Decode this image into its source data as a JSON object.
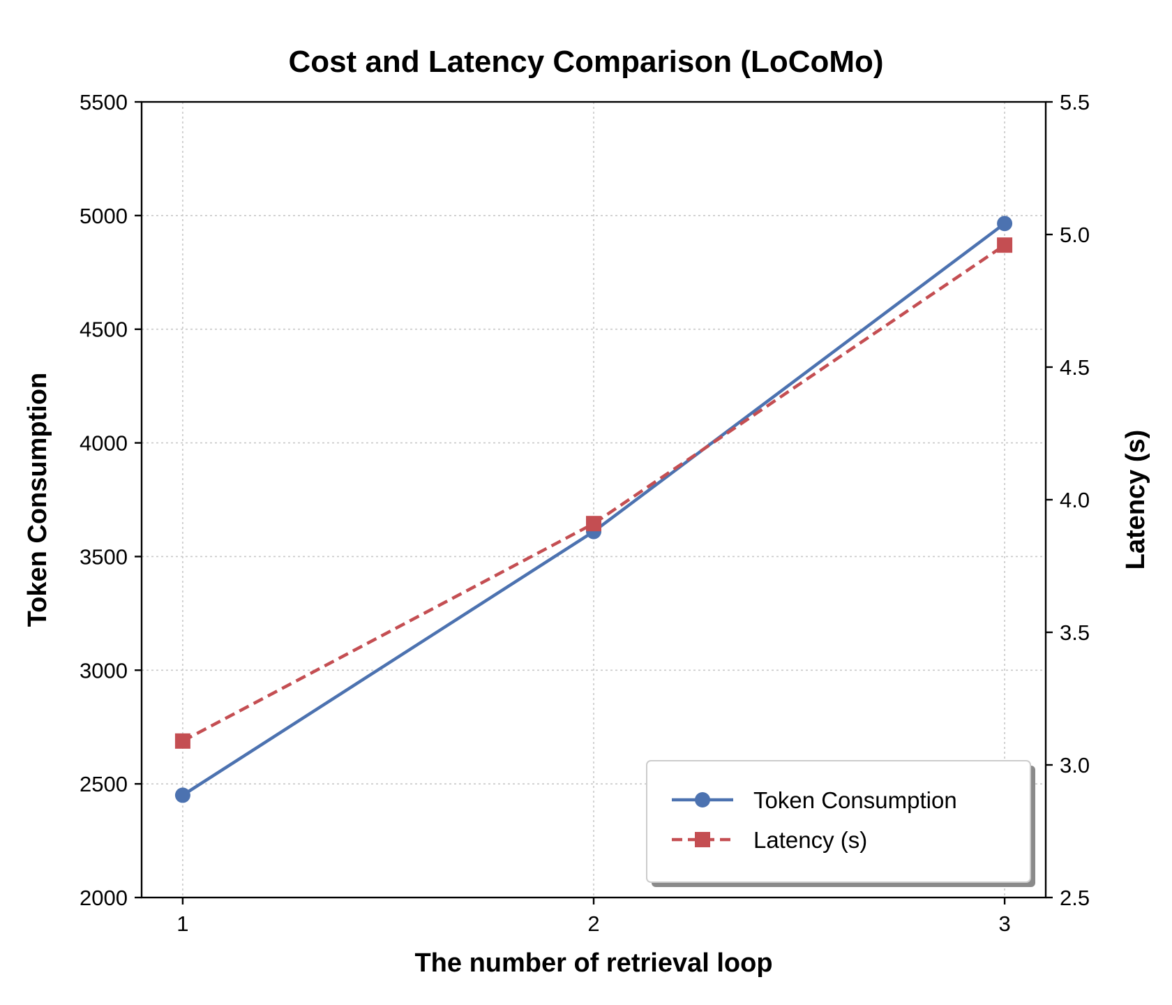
{
  "colors": {
    "token": "#4c72b0",
    "latency": "#c44e52"
  },
  "chart_data": {
    "type": "line",
    "title": "Cost and Latency Comparison (LoCoMo)",
    "xlabel": "The number of retrieval loop",
    "ylabel_left": "Token Consumption",
    "ylabel_right": "Latency (s)",
    "x": [
      1,
      2,
      3
    ],
    "x_ticks": [
      "1",
      "2",
      "3"
    ],
    "ylim_left": [
      2000,
      5500
    ],
    "y_ticks_left": [
      "2000",
      "2500",
      "3000",
      "3500",
      "4000",
      "4500",
      "5000",
      "5500"
    ],
    "ylim_right": [
      2.5,
      5.5
    ],
    "y_ticks_right": [
      "2.5",
      "3.0",
      "3.5",
      "4.0",
      "4.5",
      "5.0",
      "5.5"
    ],
    "grid": true,
    "legend_position": "lower-right",
    "series": [
      {
        "name": "Token Consumption",
        "axis": "left",
        "values": [
          2450,
          3610,
          4965
        ],
        "marker": "circle",
        "line": "solid"
      },
      {
        "name": "Latency (s)",
        "axis": "right",
        "values": [
          3.09,
          3.91,
          4.96
        ],
        "marker": "square",
        "line": "dashed"
      }
    ]
  }
}
